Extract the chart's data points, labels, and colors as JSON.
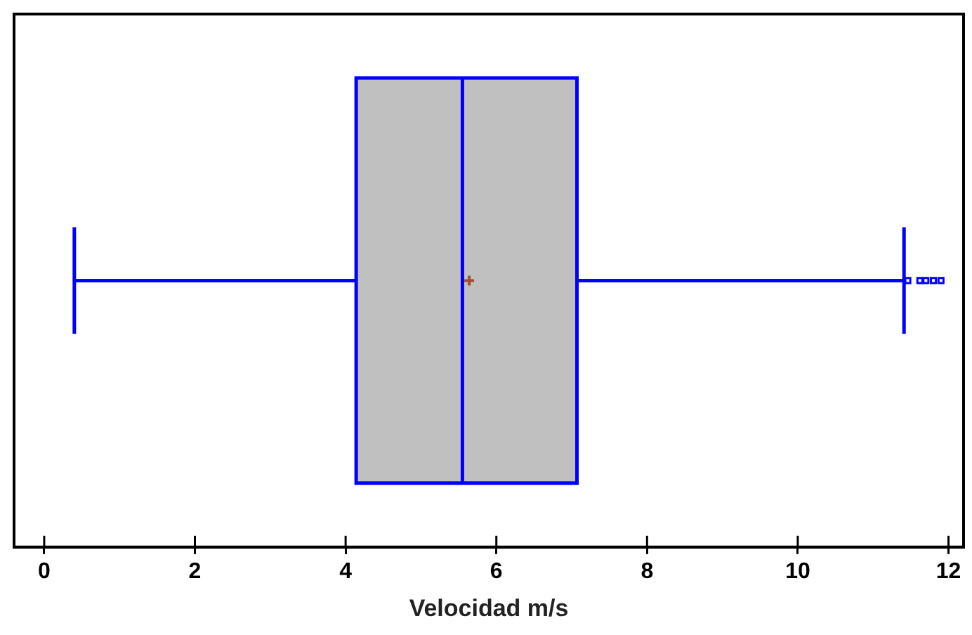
{
  "chart_data": {
    "type": "box",
    "orientation": "horizontal",
    "xlabel": "Velocidad m/s",
    "categories": [
      null
    ],
    "xlim": [
      -0.4,
      12.2
    ],
    "xticks": [
      0,
      2,
      4,
      6,
      8,
      10,
      12
    ],
    "tick_labels": "x",
    "grid": false,
    "legend": false,
    "series": [
      {
        "color": "#0000ff",
        "colors": [
          "#c0c0c0"
        ],
        "boxes": [
          {
            "low": 0.4,
            "q1": 4.14,
            "median": 5.55,
            "q3": 7.07,
            "high": 11.41,
            "mean": 5.64,
            "outliers": [
              11.46,
              11.62,
              11.7,
              11.8,
              11.9
            ]
          }
        ]
      }
    ]
  }
}
